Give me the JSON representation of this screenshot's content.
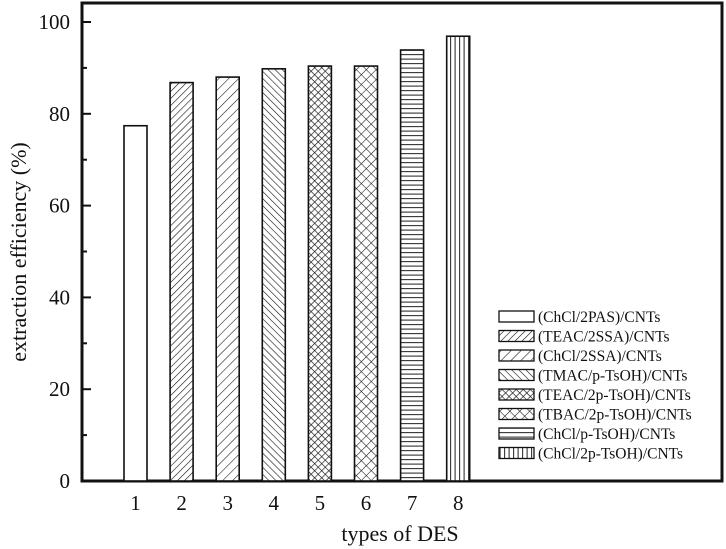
{
  "chart_data": {
    "type": "bar",
    "title": "",
    "xlabel": "types of DES",
    "ylabel": "extraction efficiency (%)",
    "ylim": [
      0,
      105
    ],
    "yticks": [
      0,
      20,
      40,
      60,
      80,
      100
    ],
    "yminor_ticks": [
      10,
      30,
      50,
      70,
      90
    ],
    "grid": false,
    "legend_position": "lower right (inside plot)",
    "categories": [
      "1",
      "2",
      "3",
      "4",
      "5",
      "6",
      "7",
      "8"
    ],
    "values": [
      77.4,
      86.8,
      88.0,
      89.8,
      90.4,
      90.4,
      93.9,
      96.9
    ],
    "series": [
      {
        "name": "(ChCl/2PAS)/CNTs",
        "category": "1",
        "value": 77.4,
        "pattern": "none"
      },
      {
        "name": "(TEAC/2SSA)/CNTs",
        "category": "2",
        "value": 86.8,
        "pattern": "dense-forward-diagonal"
      },
      {
        "name": "(ChCl/2SSA)/CNTs",
        "category": "3",
        "value": 88.0,
        "pattern": "forward-diagonal"
      },
      {
        "name": "(TMAC/p-TsOH)/CNTs",
        "category": "4",
        "value": 89.8,
        "pattern": "back-diagonal"
      },
      {
        "name": "(TEAC/2p-TsOH)/CNTs",
        "category": "5",
        "value": 90.4,
        "pattern": "dense-crosshatch"
      },
      {
        "name": "(TBAC/2p-TsOH)/CNTs",
        "category": "6",
        "value": 90.4,
        "pattern": "crosshatch"
      },
      {
        "name": "(ChCl/p-TsOH)/CNTs",
        "category": "7",
        "value": 93.9,
        "pattern": "horizontal"
      },
      {
        "name": "(ChCl/2p-TsOH)/CNTs",
        "category": "8",
        "value": 96.9,
        "pattern": "vertical"
      }
    ]
  },
  "colors": {
    "axis": "#111111",
    "bar_stroke": "#111111",
    "background": "#ffffff"
  }
}
